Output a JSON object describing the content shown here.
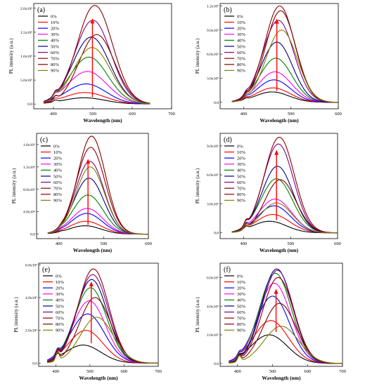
{
  "colors": [
    "#000000",
    "#ff0000",
    "#0000ff",
    "#ff00ff",
    "#008000",
    "#00008b",
    "#800080",
    "#8b0000",
    "#800000",
    "#808000"
  ],
  "arrow_color": "#ff0000",
  "panels_layout": "3 rows x 2 columns",
  "chart_data": [
    {
      "type": "line",
      "panel_label": "(a)",
      "xlabel": "Wavelength (nm)",
      "ylabel": "PL intensity (a.u.)",
      "xlim": [
        350,
        700
      ],
      "ylim": [
        -100000,
        2100000
      ],
      "xticks": [
        "400",
        "500",
        "600",
        "700"
      ],
      "yticks": [
        {
          "v": 0,
          "label": "0.0"
        },
        {
          "v": 500000,
          "label": "5.0x10⁵"
        },
        {
          "v": 1000000,
          "label": "1.0x10⁶"
        },
        {
          "v": 1500000,
          "label": "1.5x10⁶"
        },
        {
          "v": 2000000,
          "label": "2.0x10⁶"
        }
      ],
      "x_range": [
        375,
        645
      ],
      "shoulder": {
        "center": 405,
        "width": 5,
        "amp": 90000
      },
      "legend": [
        "0%",
        "10%",
        "20%",
        "30%",
        "40%",
        "50%",
        "60%",
        "70%",
        "80%",
        "90%"
      ],
      "series": [
        {
          "name": "0%",
          "peak_x": 478,
          "peak_y": 130000,
          "width": 52
        },
        {
          "name": "10%",
          "peak_x": 480,
          "peak_y": 240000,
          "width": 52
        },
        {
          "name": "20%",
          "peak_x": 483,
          "peak_y": 420000,
          "width": 50
        },
        {
          "name": "30%",
          "peak_x": 486,
          "peak_y": 680000,
          "width": 50
        },
        {
          "name": "40%",
          "peak_x": 490,
          "peak_y": 980000,
          "width": 48
        },
        {
          "name": "50%",
          "peak_x": 496,
          "peak_y": 1400000,
          "width": 47
        },
        {
          "name": "60%",
          "peak_x": 500,
          "peak_y": 1750000,
          "width": 46
        },
        {
          "name": "70%",
          "peak_x": 505,
          "peak_y": 2060000,
          "width": 45
        },
        {
          "name": "80%",
          "peak_x": 510,
          "peak_y": 1450000,
          "width": 45
        },
        {
          "name": "90%",
          "peak_x": 498,
          "peak_y": 1180000,
          "width": 47
        }
      ]
    },
    {
      "type": "line",
      "panel_label": "(b)",
      "xlabel": "Wavelength (nm)",
      "ylabel": "PL intensity (a.u.)",
      "xlim": [
        350,
        600
      ],
      "ylim": [
        -80000,
        1230000
      ],
      "xticks": [
        "400",
        "500",
        "600"
      ],
      "yticks": [
        {
          "v": 0,
          "label": "0.0"
        },
        {
          "v": 300000,
          "label": "3.0x10⁵"
        },
        {
          "v": 600000,
          "label": "6.0x10⁵"
        },
        {
          "v": 900000,
          "label": "9.0x10⁵"
        },
        {
          "v": 1200000,
          "label": "1.2x10⁶"
        }
      ],
      "x_range": [
        375,
        600
      ],
      "shoulder": {
        "center": 405,
        "width": 4,
        "amp": 40000
      },
      "legend": [
        "0%",
        "10%",
        "20%",
        "30%",
        "40%",
        "50%",
        "60%",
        "70%",
        "80%",
        "90%"
      ],
      "series": [
        {
          "name": "0%",
          "peak_x": 460,
          "peak_y": 130000,
          "width": 36
        },
        {
          "name": "10%",
          "peak_x": 462,
          "peak_y": 180000,
          "width": 36
        },
        {
          "name": "20%",
          "peak_x": 464,
          "peak_y": 280000,
          "width": 35
        },
        {
          "name": "30%",
          "peak_x": 466,
          "peak_y": 380000,
          "width": 35
        },
        {
          "name": "40%",
          "peak_x": 468,
          "peak_y": 550000,
          "width": 34
        },
        {
          "name": "50%",
          "peak_x": 470,
          "peak_y": 750000,
          "width": 33
        },
        {
          "name": "60%",
          "peak_x": 473,
          "peak_y": 1020000,
          "width": 33
        },
        {
          "name": "70%",
          "peak_x": 476,
          "peak_y": 1200000,
          "width": 32
        },
        {
          "name": "80%",
          "peak_x": 478,
          "peak_y": 1140000,
          "width": 32
        },
        {
          "name": "90%",
          "peak_x": 480,
          "peak_y": 900000,
          "width": 33
        }
      ]
    },
    {
      "type": "line",
      "panel_label": "(c)",
      "xlabel": "Wavelength (nm)",
      "ylabel": "PL intensity (a.u.)",
      "xlim": [
        350,
        600
      ],
      "ylim": [
        -80000,
        1800000
      ],
      "xticks": [
        "400",
        "500",
        "600"
      ],
      "yticks": [
        {
          "v": 0,
          "label": "0.0"
        },
        {
          "v": 400000,
          "label": "4.0x10⁵"
        },
        {
          "v": 800000,
          "label": "8.0x10⁵"
        },
        {
          "v": 1200000,
          "label": "1.2x10⁶"
        },
        {
          "v": 1600000,
          "label": "1.6x10⁶"
        }
      ],
      "x_range": [
        375,
        600
      ],
      "shoulder": {
        "center": 405,
        "width": 4,
        "amp": 20000
      },
      "legend": [
        "0%",
        "10%",
        "20%",
        "30%",
        "40%",
        "50%",
        "60%",
        "70%",
        "80%",
        "90%"
      ],
      "series": [
        {
          "name": "0%",
          "peak_x": 458,
          "peak_y": 150000,
          "width": 36
        },
        {
          "name": "10%",
          "peak_x": 460,
          "peak_y": 230000,
          "width": 36
        },
        {
          "name": "20%",
          "peak_x": 462,
          "peak_y": 370000,
          "width": 35
        },
        {
          "name": "30%",
          "peak_x": 463,
          "peak_y": 460000,
          "width": 35
        },
        {
          "name": "40%",
          "peak_x": 465,
          "peak_y": 700000,
          "width": 34
        },
        {
          "name": "50%",
          "peak_x": 467,
          "peak_y": 1000000,
          "width": 33
        },
        {
          "name": "60%",
          "peak_x": 469,
          "peak_y": 1300000,
          "width": 32
        },
        {
          "name": "70%",
          "peak_x": 471,
          "peak_y": 1550000,
          "width": 32
        },
        {
          "name": "80%",
          "peak_x": 473,
          "peak_y": 1750000,
          "width": 31
        },
        {
          "name": "90%",
          "peak_x": 470,
          "peak_y": 1200000,
          "width": 32
        }
      ]
    },
    {
      "type": "line",
      "panel_label": "(d)",
      "xlabel": "Wavelength (nm)",
      "ylabel": "PL intensity (a.u.)",
      "xlim": [
        350,
        600
      ],
      "ylim": [
        -60000,
        1030000
      ],
      "xticks": [
        "400",
        "500",
        "600"
      ],
      "yticks": [
        {
          "v": 0,
          "label": "0.0"
        },
        {
          "v": 300000,
          "label": "3.0x10⁵"
        },
        {
          "v": 600000,
          "label": "6.0x10⁵"
        },
        {
          "v": 900000,
          "label": "9.0x10⁵"
        }
      ],
      "x_range": [
        375,
        600
      ],
      "shoulder": {
        "center": 405,
        "width": 4,
        "amp": 60000
      },
      "legend": [
        "0%",
        "10%",
        "20%",
        "30%",
        "40%",
        "50%",
        "60%",
        "70%",
        "80%",
        "90%"
      ],
      "series": [
        {
          "name": "0%",
          "peak_x": 455,
          "peak_y": 120000,
          "width": 36
        },
        {
          "name": "10%",
          "peak_x": 462,
          "peak_y": 190000,
          "width": 36
        },
        {
          "name": "20%",
          "peak_x": 465,
          "peak_y": 280000,
          "width": 35
        },
        {
          "name": "30%",
          "peak_x": 467,
          "peak_y": 350000,
          "width": 35
        },
        {
          "name": "40%",
          "peak_x": 470,
          "peak_y": 560000,
          "width": 34
        },
        {
          "name": "50%",
          "peak_x": 472,
          "peak_y": 690000,
          "width": 33
        },
        {
          "name": "60%",
          "peak_x": 474,
          "peak_y": 920000,
          "width": 32
        },
        {
          "name": "70%",
          "peak_x": 476,
          "peak_y": 990000,
          "width": 32
        },
        {
          "name": "80%",
          "peak_x": 478,
          "peak_y": 550000,
          "width": 33
        },
        {
          "name": "90%",
          "peak_x": 470,
          "peak_y": 310000,
          "width": 34
        }
      ]
    },
    {
      "type": "line",
      "panel_label": "(e)",
      "xlabel": "Wavelength (nm)",
      "ylabel": "PL intensity (a.u.)",
      "xlim": [
        350,
        700
      ],
      "ylim": [
        -20000,
        610000
      ],
      "xticks": [
        "400",
        "500",
        "600",
        "700"
      ],
      "yticks": [
        {
          "v": 0,
          "label": "0.0"
        },
        {
          "v": 200000,
          "label": "2.0x10⁵"
        },
        {
          "v": 400000,
          "label": "4.0x10⁵"
        },
        {
          "v": 600000,
          "label": "6.0x10⁵"
        }
      ],
      "x_range": [
        375,
        700
      ],
      "shoulder": {
        "center": 405,
        "width": 5,
        "amp": 50000
      },
      "legend": [
        "0%",
        "10%",
        "20%",
        "30%",
        "40%",
        "50%",
        "60%",
        "70%",
        "80%",
        "90%"
      ],
      "series": [
        {
          "name": "0%",
          "peak_x": 480,
          "peak_y": 110000,
          "width": 52
        },
        {
          "name": "10%",
          "peak_x": 488,
          "peak_y": 200000,
          "width": 50
        },
        {
          "name": "20%",
          "peak_x": 493,
          "peak_y": 300000,
          "width": 50
        },
        {
          "name": "30%",
          "peak_x": 498,
          "peak_y": 380000,
          "width": 48
        },
        {
          "name": "40%",
          "peak_x": 502,
          "peak_y": 460000,
          "width": 47
        },
        {
          "name": "50%",
          "peak_x": 505,
          "peak_y": 510000,
          "width": 46
        },
        {
          "name": "60%",
          "peak_x": 508,
          "peak_y": 540000,
          "width": 46
        },
        {
          "name": "70%",
          "peak_x": 510,
          "peak_y": 575000,
          "width": 45
        },
        {
          "name": "80%",
          "peak_x": 515,
          "peak_y": 400000,
          "width": 46
        },
        {
          "name": "90%",
          "peak_x": 520,
          "peak_y": 280000,
          "width": 48
        }
      ]
    },
    {
      "type": "line",
      "panel_label": "(f)",
      "xlabel": "Wavelength (nm)",
      "ylabel": "PL intensity (a.u.)",
      "xlim": [
        350,
        700
      ],
      "ylim": [
        -20000,
        700000
      ],
      "xticks": [
        "400",
        "500",
        "600",
        "700"
      ],
      "yticks": [
        {
          "v": 0,
          "label": "0.0"
        },
        {
          "v": 200000,
          "label": "2.0x10⁵"
        },
        {
          "v": 400000,
          "label": "4.0x10⁵"
        },
        {
          "v": 600000,
          "label": "6.0x10⁵"
        }
      ],
      "x_range": [
        375,
        700
      ],
      "shoulder": {
        "center": 405,
        "width": 5,
        "amp": 40000
      },
      "legend": [
        "0%",
        "10%",
        "20%",
        "30%",
        "40%",
        "50%",
        "60%",
        "70%",
        "80%",
        "90%"
      ],
      "series": [
        {
          "name": "0%",
          "peak_x": 490,
          "peak_y": 200000,
          "width": 52
        },
        {
          "name": "10%",
          "peak_x": 495,
          "peak_y": 300000,
          "width": 50
        },
        {
          "name": "20%",
          "peak_x": 500,
          "peak_y": 470000,
          "width": 48
        },
        {
          "name": "30%",
          "peak_x": 505,
          "peak_y": 560000,
          "width": 47
        },
        {
          "name": "40%",
          "peak_x": 508,
          "peak_y": 630000,
          "width": 46
        },
        {
          "name": "50%",
          "peak_x": 512,
          "peak_y": 660000,
          "width": 45
        },
        {
          "name": "60%",
          "peak_x": 514,
          "peak_y": 650000,
          "width": 45
        },
        {
          "name": "70%",
          "peak_x": 516,
          "peak_y": 600000,
          "width": 45
        },
        {
          "name": "80%",
          "peak_x": 520,
          "peak_y": 420000,
          "width": 47
        },
        {
          "name": "90%",
          "peak_x": 525,
          "peak_y": 260000,
          "width": 50
        }
      ]
    }
  ]
}
